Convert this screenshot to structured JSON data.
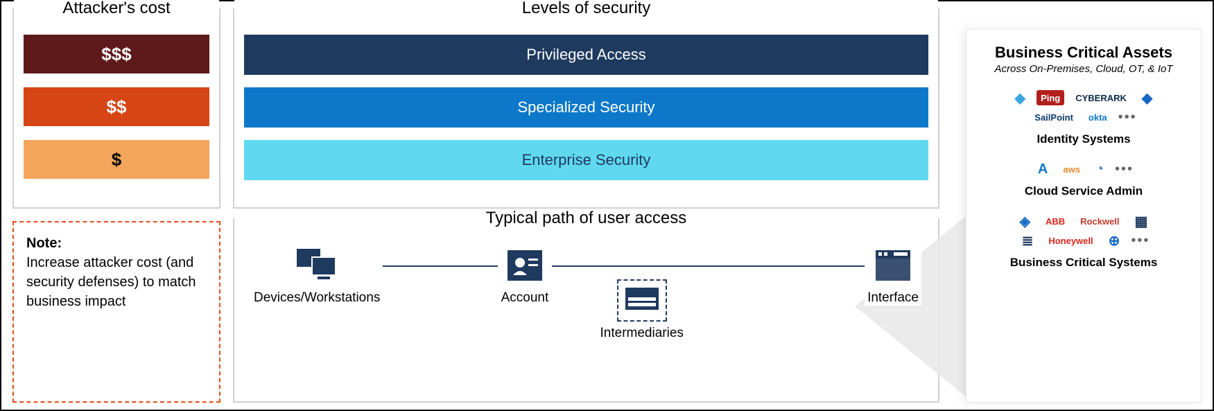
{
  "attacker_cost": {
    "title": "Attacker's cost",
    "bars": [
      {
        "label": "$$$",
        "bg": "#5e1a1a",
        "fg": "#ffffff"
      },
      {
        "label": "$$",
        "bg": "#d64516",
        "fg": "#ffffff"
      },
      {
        "label": "$",
        "bg": "#f3a55b",
        "fg": "#000000"
      }
    ]
  },
  "note": {
    "heading": "Note:",
    "body": "Increase attacker cost (and security defenses) to match business impact",
    "border_color": "#e34b1f"
  },
  "levels": {
    "title": "Levels of security",
    "bars": [
      {
        "label": "Privileged Access",
        "bg": "#1f3a5f",
        "fg": "#ffffff"
      },
      {
        "label": "Specialized Security",
        "bg": "#0d78c9",
        "fg": "#ffffff"
      },
      {
        "label": "Enterprise Security",
        "bg": "#5fd8f0",
        "fg": "#1f3a5f"
      }
    ]
  },
  "path": {
    "title": "Typical path of user access",
    "steps": [
      {
        "key": "devices",
        "label": "Devices/Workstations"
      },
      {
        "key": "account",
        "label": "Account"
      },
      {
        "key": "interface",
        "label": "Interface"
      }
    ],
    "intermediaries_label": "Intermediaries",
    "icon_color": "#1f3a5f"
  },
  "assets": {
    "title": "Business Critical Assets",
    "subtitle": "Across On-Premises, Cloud, OT, & IoT",
    "groups": [
      {
        "label": "Identity Systems",
        "logos": [
          {
            "text": "◆",
            "bg": "#ffffff",
            "fg": "#3aa7e0"
          },
          {
            "text": "Ping",
            "bg": "#b2201e",
            "fg": "#ffffff"
          },
          {
            "text": "CYBERARK",
            "bg": "#ffffff",
            "fg": "#0a2a4a"
          },
          {
            "text": "◆",
            "bg": "#ffffff",
            "fg": "#1368c4"
          },
          {
            "text": "SailPoint",
            "bg": "#ffffff",
            "fg": "#0a3a6a"
          },
          {
            "text": "okta",
            "bg": "#ffffff",
            "fg": "#0d78c9"
          }
        ]
      },
      {
        "label": "Cloud Service Admin",
        "logos": [
          {
            "text": "A",
            "bg": "#ffffff",
            "fg": "#0d78c9"
          },
          {
            "text": "aws",
            "bg": "#ffffff",
            "fg": "#e08b2c"
          },
          {
            "text": "◔",
            "bg": "#ffffff",
            "fg": "#3b7de0"
          }
        ]
      },
      {
        "label": "Business Critical Systems",
        "logos": [
          {
            "text": "◈",
            "bg": "#ffffff",
            "fg": "#1368c4"
          },
          {
            "text": "ABB",
            "bg": "#ffffff",
            "fg": "#d9261c"
          },
          {
            "text": "Rockwell",
            "bg": "#ffffff",
            "fg": "#c0392b"
          },
          {
            "text": "▦",
            "bg": "#ffffff",
            "fg": "#1f3a5f"
          },
          {
            "text": "≣",
            "bg": "#ffffff",
            "fg": "#1f3a5f"
          },
          {
            "text": "Honeywell",
            "bg": "#ffffff",
            "fg": "#d9261c"
          },
          {
            "text": "⊕",
            "bg": "#ffffff",
            "fg": "#1368c4"
          }
        ]
      }
    ]
  },
  "colors": {
    "field_border": "#d0d0d0",
    "path_icon": "#1f3a5f"
  }
}
